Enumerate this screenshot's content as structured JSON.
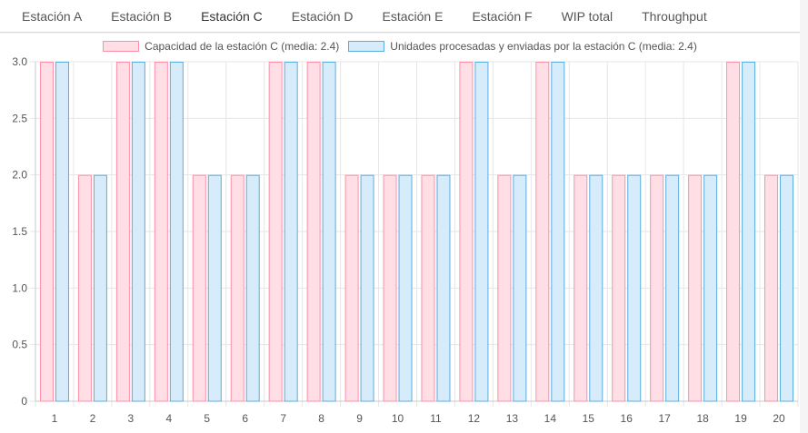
{
  "tabs": [
    {
      "label": "Estación A"
    },
    {
      "label": "Estación B"
    },
    {
      "label": "Estación C"
    },
    {
      "label": "Estación D"
    },
    {
      "label": "Estación E"
    },
    {
      "label": "Estación F"
    },
    {
      "label": "WIP total"
    },
    {
      "label": "Throughput"
    }
  ],
  "colors": {
    "capacity_fill": "#ffdfe5",
    "capacity_border": "#ff8fa8",
    "processed_fill": "#d6ecfa",
    "processed_border": "#5aaedf",
    "grid": "#e6e6e6",
    "axis": "#c8c8c8"
  },
  "chart_data": {
    "type": "bar",
    "categories": [
      "1",
      "2",
      "3",
      "4",
      "5",
      "6",
      "7",
      "8",
      "9",
      "10",
      "11",
      "12",
      "13",
      "14",
      "15",
      "16",
      "17",
      "18",
      "19",
      "20"
    ],
    "series": [
      {
        "name": "Capacidad de la estación C (media: 2.4)",
        "values": [
          3,
          2,
          3,
          3,
          2,
          2,
          3,
          3,
          2,
          2,
          2,
          3,
          2,
          3,
          2,
          2,
          2,
          2,
          3,
          2
        ]
      },
      {
        "name": "Unidades procesadas y enviadas por la estación C (media: 2.4)",
        "values": [
          3,
          2,
          3,
          3,
          2,
          2,
          3,
          3,
          2,
          2,
          2,
          3,
          2,
          3,
          2,
          2,
          2,
          2,
          3,
          2
        ]
      }
    ],
    "yticks": [
      "0",
      "0.5",
      "1.0",
      "1.5",
      "2.0",
      "2.5",
      "3.0"
    ],
    "ylim": [
      0,
      3
    ],
    "grid": true,
    "legend_position": "top-center",
    "title": "",
    "xlabel": "",
    "ylabel": ""
  }
}
